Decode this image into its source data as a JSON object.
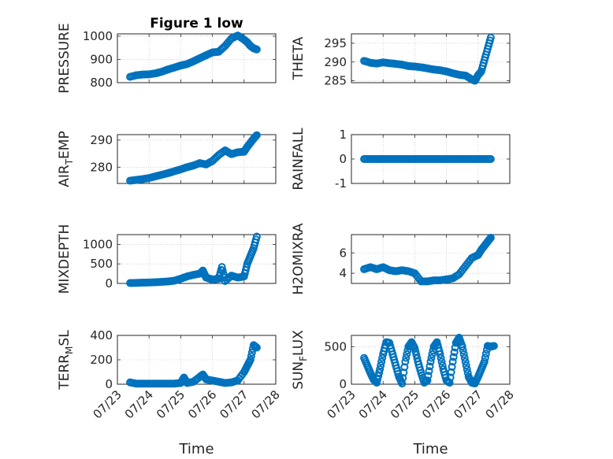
{
  "figure": {
    "title": "Figure 1 low"
  },
  "colors": {
    "series": "#0072BD",
    "axis": "#262626",
    "grid": "#b8b8b8"
  },
  "chart_data": [
    {
      "id": "pressure",
      "type": "scatter",
      "title": "Figure 1 low",
      "ylabel": "PRESSURE",
      "ylabel_sub": "",
      "ylabel_tail": "",
      "xlabel": "",
      "show_xticklabels": false,
      "xlim": [
        23,
        28
      ],
      "ylim": [
        800,
        1010
      ],
      "yticks": [
        800,
        900,
        1000
      ],
      "ytick_labels": [
        "800",
        "900",
        "1000"
      ],
      "xticks": [
        23,
        24,
        25,
        26,
        27,
        28
      ],
      "xtick_labels": [
        "07/23",
        "07/24",
        "07/25",
        "07/26",
        "07/27",
        "07/28"
      ],
      "x": [
        23.4,
        23.6,
        23.8,
        24.0,
        24.2,
        24.4,
        24.6,
        24.8,
        25.0,
        25.2,
        25.4,
        25.6,
        25.8,
        26.0,
        26.2,
        26.4,
        26.6,
        26.8,
        27.0,
        27.1,
        27.2,
        27.3,
        27.4
      ],
      "y": [
        825,
        832,
        835,
        836,
        840,
        847,
        857,
        865,
        874,
        880,
        892,
        905,
        918,
        930,
        933,
        958,
        990,
        1003,
        985,
        974,
        958,
        948,
        943
      ]
    },
    {
      "id": "theta",
      "type": "scatter",
      "title": "",
      "ylabel": "THETA",
      "ylabel_sub": "",
      "ylabel_tail": "",
      "xlabel": "",
      "show_xticklabels": false,
      "xlim": [
        23,
        28
      ],
      "ylim": [
        284.5,
        297.5
      ],
      "yticks": [
        285,
        290,
        295
      ],
      "ytick_labels": [
        "285",
        "290",
        "295"
      ],
      "xticks": [
        23,
        24,
        25,
        26,
        27,
        28
      ],
      "xtick_labels": [
        "07/23",
        "07/24",
        "07/25",
        "07/26",
        "07/27",
        "07/28"
      ],
      "x": [
        23.4,
        23.6,
        23.8,
        24.0,
        24.2,
        24.4,
        24.6,
        24.8,
        25.0,
        25.2,
        25.4,
        25.6,
        25.8,
        26.0,
        26.2,
        26.4,
        26.6,
        26.8,
        26.9,
        27.0,
        27.1,
        27.2,
        27.3,
        27.4
      ],
      "y": [
        290.3,
        289.8,
        289.6,
        289.9,
        289.7,
        289.5,
        289.3,
        288.9,
        288.8,
        288.6,
        288.3,
        288.0,
        287.8,
        287.5,
        287.0,
        286.6,
        286.4,
        285.4,
        285.0,
        286.5,
        287.5,
        290.5,
        293.5,
        296.5
      ]
    },
    {
      "id": "air-temp",
      "type": "scatter",
      "title": "",
      "ylabel": "AIR",
      "ylabel_sub": "T",
      "ylabel_tail": "EMP",
      "xlabel": "",
      "show_xticklabels": false,
      "xlim": [
        23,
        28
      ],
      "ylim": [
        274,
        292
      ],
      "yticks": [
        280,
        290
      ],
      "ytick_labels": [
        "280",
        "290"
      ],
      "xticks": [
        23,
        24,
        25,
        26,
        27,
        28
      ],
      "xtick_labels": [
        "07/23",
        "07/24",
        "07/25",
        "07/26",
        "07/27",
        "07/28"
      ],
      "x": [
        23.4,
        23.6,
        23.8,
        24.0,
        24.2,
        24.4,
        24.6,
        24.8,
        25.0,
        25.2,
        25.4,
        25.6,
        25.8,
        26.0,
        26.2,
        26.4,
        26.6,
        26.8,
        27.0,
        27.1,
        27.2,
        27.3,
        27.4
      ],
      "y": [
        275.0,
        275.3,
        275.6,
        276.0,
        276.6,
        277.2,
        277.8,
        278.5,
        279.2,
        280.0,
        280.6,
        281.5,
        281.0,
        282.3,
        284.5,
        286.2,
        284.8,
        285.5,
        285.7,
        287.5,
        289.0,
        290.5,
        291.8
      ]
    },
    {
      "id": "rainfall",
      "type": "scatter",
      "title": "",
      "ylabel": "RAINFALL",
      "ylabel_sub": "",
      "ylabel_tail": "",
      "xlabel": "",
      "show_xticklabels": false,
      "xlim": [
        23,
        28
      ],
      "ylim": [
        -1,
        1
      ],
      "yticks": [
        -1,
        0,
        1
      ],
      "ytick_labels": [
        "-1",
        "0",
        "1"
      ],
      "xticks": [
        23,
        24,
        25,
        26,
        27,
        28
      ],
      "xtick_labels": [
        "07/23",
        "07/24",
        "07/25",
        "07/26",
        "07/27",
        "07/28"
      ],
      "x": [
        23.4,
        23.6,
        23.8,
        24.0,
        24.2,
        24.4,
        24.6,
        24.8,
        25.0,
        25.2,
        25.4,
        25.6,
        25.8,
        26.0,
        26.2,
        26.4,
        26.6,
        26.8,
        27.0,
        27.2,
        27.4
      ],
      "y": [
        0,
        0,
        0,
        0,
        0,
        0,
        0,
        0,
        0,
        0,
        0,
        0,
        0,
        0,
        0,
        0,
        0,
        0,
        0,
        0,
        0
      ]
    },
    {
      "id": "mixdepth",
      "type": "scatter",
      "title": "",
      "ylabel": "MIXDEPTH",
      "ylabel_sub": "",
      "ylabel_tail": "",
      "xlabel": "",
      "show_xticklabels": false,
      "xlim": [
        23,
        28
      ],
      "ylim": [
        0,
        1250
      ],
      "yticks": [
        0,
        500,
        1000
      ],
      "ytick_labels": [
        "0",
        "500",
        "1000"
      ],
      "xticks": [
        23,
        24,
        25,
        26,
        27,
        28
      ],
      "xtick_labels": [
        "07/23",
        "07/24",
        "07/25",
        "07/26",
        "07/27",
        "07/28"
      ],
      "x": [
        23.4,
        23.6,
        23.8,
        24.0,
        24.2,
        24.4,
        24.6,
        24.8,
        25.0,
        25.2,
        25.4,
        25.6,
        25.7,
        25.8,
        26.0,
        26.2,
        26.3,
        26.4,
        26.6,
        26.8,
        27.0,
        27.1,
        27.2,
        27.3,
        27.4
      ],
      "y": [
        10,
        15,
        20,
        25,
        30,
        40,
        50,
        70,
        120,
        180,
        220,
        250,
        330,
        150,
        100,
        120,
        420,
        60,
        200,
        150,
        180,
        500,
        700,
        900,
        1200
      ]
    },
    {
      "id": "h2omixra",
      "type": "scatter",
      "title": "",
      "ylabel": "H2OMIXRA",
      "ylabel_sub": "",
      "ylabel_tail": "",
      "xlabel": "",
      "show_xticklabels": false,
      "xlim": [
        23,
        28
      ],
      "ylim": [
        3,
        7.8
      ],
      "yticks": [
        4,
        6
      ],
      "ytick_labels": [
        "4",
        "6"
      ],
      "xticks": [
        23,
        24,
        25,
        26,
        27,
        28
      ],
      "xtick_labels": [
        "07/23",
        "07/24",
        "07/25",
        "07/26",
        "07/27",
        "07/28"
      ],
      "x": [
        23.4,
        23.6,
        23.8,
        24.0,
        24.2,
        24.4,
        24.6,
        24.8,
        25.0,
        25.2,
        25.4,
        25.6,
        25.8,
        26.0,
        26.2,
        26.4,
        26.6,
        26.8,
        27.0,
        27.1,
        27.2,
        27.3,
        27.4
      ],
      "y": [
        4.4,
        4.6,
        4.4,
        4.6,
        4.3,
        4.2,
        4.3,
        4.2,
        4.0,
        3.2,
        3.2,
        3.3,
        3.3,
        3.4,
        3.5,
        3.9,
        4.7,
        5.5,
        5.8,
        6.3,
        6.7,
        7.1,
        7.5
      ]
    },
    {
      "id": "terr-msl",
      "type": "scatter",
      "title": "",
      "ylabel": "TERR",
      "ylabel_sub": "M",
      "ylabel_tail": "SL",
      "xlabel": "Time",
      "show_xticklabels": true,
      "xlim": [
        23,
        28
      ],
      "ylim": [
        0,
        400
      ],
      "yticks": [
        0,
        200,
        400
      ],
      "ytick_labels": [
        "0",
        "200",
        "400"
      ],
      "xticks": [
        23,
        24,
        25,
        26,
        27,
        28
      ],
      "xtick_labels": [
        "07/23",
        "07/24",
        "07/25",
        "07/26",
        "07/27",
        "07/28"
      ],
      "x": [
        23.4,
        23.6,
        23.8,
        24.0,
        24.2,
        24.4,
        24.6,
        24.8,
        25.0,
        25.1,
        25.2,
        25.4,
        25.6,
        25.7,
        25.8,
        26.0,
        26.2,
        26.4,
        26.6,
        26.8,
        27.0,
        27.1,
        27.2,
        27.3,
        27.4
      ],
      "y": [
        15,
        5,
        5,
        5,
        5,
        5,
        5,
        5,
        10,
        55,
        10,
        20,
        60,
        80,
        40,
        30,
        20,
        10,
        15,
        30,
        100,
        150,
        200,
        320,
        300
      ]
    },
    {
      "id": "sun-flux",
      "type": "scatter",
      "title": "",
      "ylabel": "SUN",
      "ylabel_sub": "F",
      "ylabel_tail": "LUX",
      "xlabel": "Time",
      "show_xticklabels": true,
      "xlim": [
        23,
        28
      ],
      "ylim": [
        0,
        650
      ],
      "yticks": [
        0,
        500
      ],
      "ytick_labels": [
        "0",
        "500"
      ],
      "xticks": [
        23,
        24,
        25,
        26,
        27,
        28
      ],
      "xtick_labels": [
        "07/23",
        "07/24",
        "07/25",
        "07/26",
        "07/27",
        "07/28"
      ],
      "x": [
        23.4,
        23.5,
        23.6,
        23.7,
        23.8,
        23.9,
        24.0,
        24.1,
        24.2,
        24.3,
        24.4,
        24.5,
        24.6,
        24.7,
        24.8,
        24.9,
        25.0,
        25.1,
        25.2,
        25.3,
        25.4,
        25.5,
        25.6,
        25.7,
        25.8,
        25.9,
        26.0,
        26.1,
        26.2,
        26.3,
        26.4,
        26.5,
        26.6,
        26.7,
        26.8,
        26.9,
        27.0,
        27.1,
        27.2,
        27.3,
        27.4,
        27.5
      ],
      "y": [
        350,
        250,
        150,
        60,
        20,
        200,
        400,
        560,
        550,
        400,
        250,
        100,
        10,
        300,
        500,
        560,
        480,
        300,
        150,
        20,
        50,
        300,
        500,
        560,
        400,
        200,
        50,
        20,
        300,
        550,
        620,
        500,
        300,
        100,
        20,
        10,
        100,
        200,
        300,
        510,
        500,
        510
      ]
    }
  ]
}
